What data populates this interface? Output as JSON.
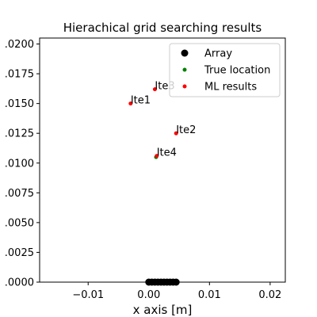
{
  "chart_data": {
    "type": "scatter",
    "title": "Hierachical grid searching results",
    "xlabel": "x axis [m]",
    "ylabel": "",
    "xlim": [
      -0.018,
      0.0225
    ],
    "ylim": [
      0.0,
      0.0205
    ],
    "xticks": [
      -0.01,
      0.0,
      0.01,
      0.02
    ],
    "xtick_labels": [
      "−0.01",
      "0.00",
      "0.01",
      "0.02"
    ],
    "yticks": [
      0.0,
      0.0025,
      0.005,
      0.0075,
      0.01,
      0.0125,
      0.015,
      0.0175,
      0.02
    ],
    "ytick_labels": [
      ".0000",
      ".0025",
      ".0050",
      ".0075",
      ".0100",
      ".0125",
      ".0150",
      ".0175",
      ".0200"
    ],
    "grid": false,
    "legend_position": "top-right",
    "series": [
      {
        "name": "Array",
        "color": "#000000",
        "marker": "large-circle",
        "points": [
          [
            0.0,
            0.0
          ],
          [
            0.0005,
            0.0
          ],
          [
            0.001,
            0.0
          ],
          [
            0.0015,
            0.0
          ],
          [
            0.002,
            0.0
          ],
          [
            0.0025,
            0.0
          ],
          [
            0.003,
            0.0
          ],
          [
            0.0035,
            0.0
          ],
          [
            0.004,
            0.0
          ],
          [
            0.0045,
            0.0
          ]
        ]
      },
      {
        "name": "True location",
        "color": "#008000",
        "marker": "small-circle",
        "points": [
          [
            0.0012,
            0.0105
          ]
        ]
      },
      {
        "name": "ML results",
        "color": "#ff0000",
        "marker": "small-circle",
        "points": [
          [
            -0.003,
            0.015
          ],
          [
            0.0045,
            0.0125
          ],
          [
            0.001,
            0.0162
          ],
          [
            0.0013,
            0.0106
          ]
        ]
      }
    ],
    "annotations": [
      {
        "text": "Ite1",
        "x": -0.003,
        "y": 0.015
      },
      {
        "text": "Ite2",
        "x": 0.0045,
        "y": 0.0125
      },
      {
        "text": "Ite3",
        "x": 0.001,
        "y": 0.0162
      },
      {
        "text": "Ite4",
        "x": 0.0013,
        "y": 0.0106
      }
    ]
  }
}
